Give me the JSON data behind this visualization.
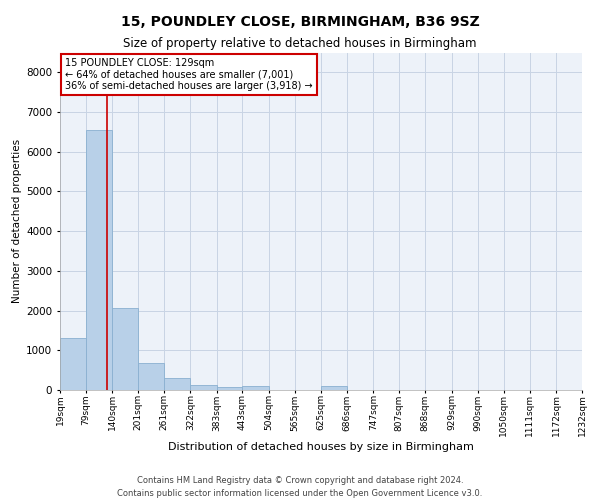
{
  "title1": "15, POUNDLEY CLOSE, BIRMINGHAM, B36 9SZ",
  "title2": "Size of property relative to detached houses in Birmingham",
  "xlabel": "Distribution of detached houses by size in Birmingham",
  "ylabel": "Number of detached properties",
  "annotation_title": "15 POUNDLEY CLOSE: 129sqm",
  "annotation_line1": "← 64% of detached houses are smaller (7,001)",
  "annotation_line2": "36% of semi-detached houses are larger (3,918) →",
  "property_size": 129,
  "footer1": "Contains HM Land Registry data © Crown copyright and database right 2024.",
  "footer2": "Contains public sector information licensed under the Open Government Licence v3.0.",
  "bar_color": "#b8d0e8",
  "bar_edge_color": "#8ab0d0",
  "vline_color": "#cc0000",
  "bg_color": "#edf2f9",
  "grid_color": "#c8d4e4",
  "bins": [
    19,
    79,
    140,
    201,
    261,
    322,
    383,
    443,
    504,
    565,
    625,
    686,
    747,
    807,
    868,
    929,
    990,
    1050,
    1111,
    1172,
    1232
  ],
  "bin_labels": [
    "19sqm",
    "79sqm",
    "140sqm",
    "201sqm",
    "261sqm",
    "322sqm",
    "383sqm",
    "443sqm",
    "504sqm",
    "565sqm",
    "625sqm",
    "686sqm",
    "747sqm",
    "807sqm",
    "868sqm",
    "929sqm",
    "990sqm",
    "1050sqm",
    "1111sqm",
    "1172sqm",
    "1232sqm"
  ],
  "counts": [
    1300,
    6550,
    2070,
    680,
    290,
    130,
    80,
    95,
    0,
    0,
    90,
    0,
    0,
    0,
    0,
    0,
    0,
    0,
    0,
    0
  ],
  "ylim": [
    0,
    8500
  ],
  "yticks": [
    0,
    1000,
    2000,
    3000,
    4000,
    5000,
    6000,
    7000,
    8000
  ]
}
